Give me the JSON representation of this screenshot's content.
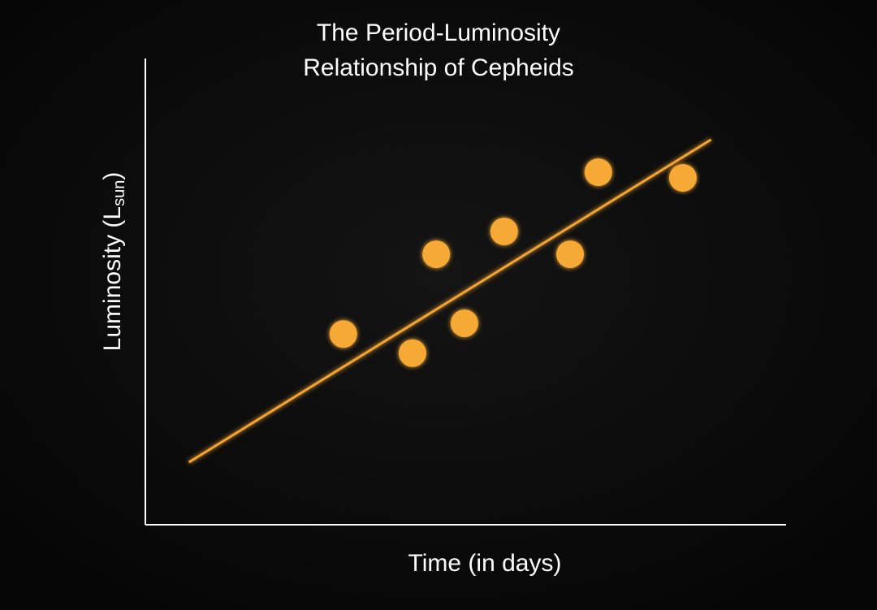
{
  "chart_data": {
    "type": "scatter",
    "title": [
      "The Period-Luminosity",
      "Relationship of Cepheids"
    ],
    "xlabel": "Time (in days)",
    "ylabel": [
      "Luminosity (L",
      "sun",
      ")"
    ],
    "x": [
      30.9,
      41.7,
      45.4,
      49.8,
      56.0,
      66.3,
      70.7,
      83.9
    ],
    "values": [
      40.9,
      36.8,
      58.0,
      43.2,
      62.9,
      58.0,
      75.6,
      74.4
    ],
    "color": "#f6a935",
    "trend": {
      "x": [
        6.8,
        88.3
      ],
      "values": [
        13.4,
        82.6
      ],
      "color": "#f2a333"
    },
    "xlim": [
      0,
      100
    ],
    "ylim": [
      0,
      100
    ]
  }
}
